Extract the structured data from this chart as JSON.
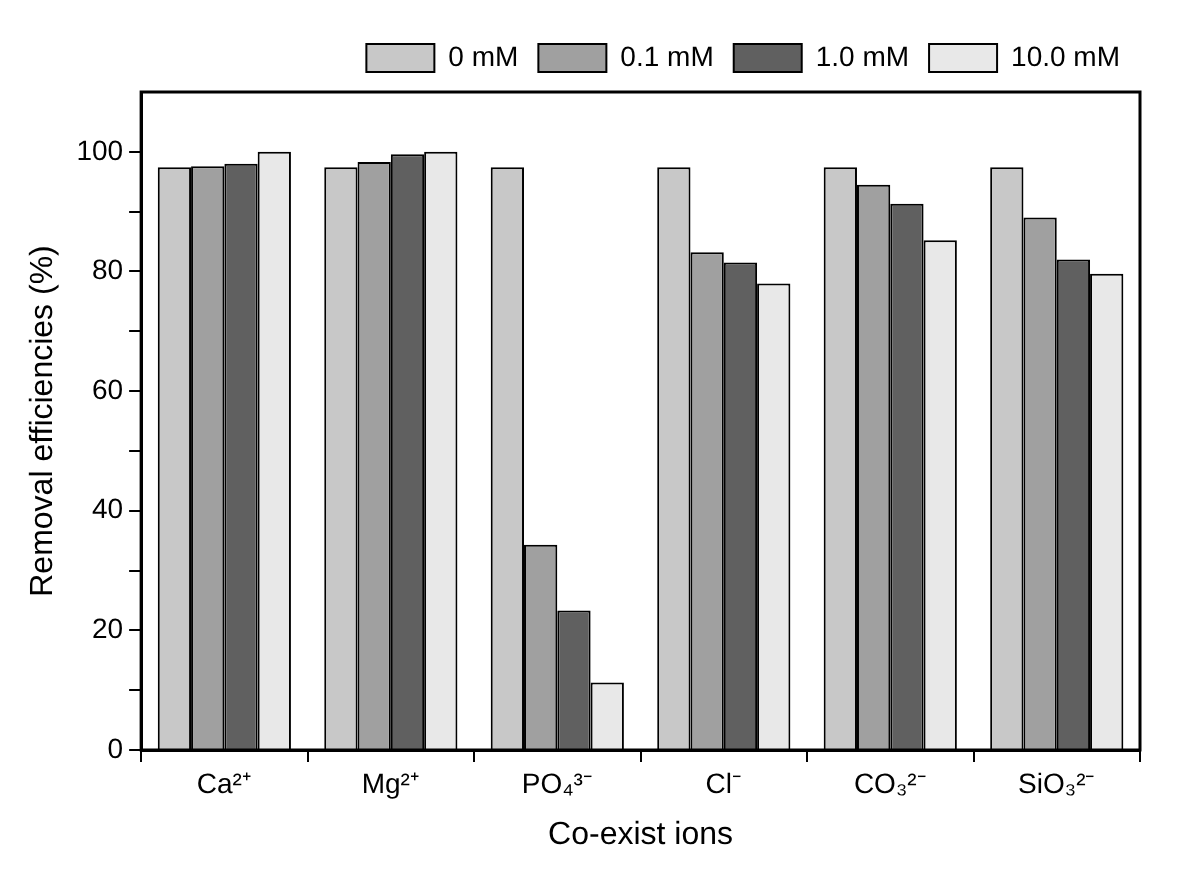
{
  "chart_data": {
    "type": "bar",
    "xlabel": "Co-exist ions",
    "ylabel": "Removal efficiencies (%)",
    "categories": [
      "Ca²⁺",
      "Mg²⁺",
      "PO₄³⁻",
      "Cl⁻",
      "CO₃²⁻",
      "SiO₃²⁻"
    ],
    "series": [
      {
        "name": "0 mM",
        "color": "#c8c8c8",
        "values": [
          97.4,
          97.4,
          97.4,
          97.4,
          97.4,
          97.4
        ]
      },
      {
        "name": "0.1 mM",
        "color": "#a0a0a0",
        "values": [
          97.6,
          98.3,
          34.3,
          83.2,
          94.5,
          89
        ]
      },
      {
        "name": "1.0 mM",
        "color": "#606060",
        "values": [
          98,
          99.6,
          23.3,
          81.5,
          91.3,
          82
        ]
      },
      {
        "name": "10.0 mM",
        "color": "#e8e8e8",
        "values": [
          100,
          100,
          11.3,
          78,
          85.2,
          79.6
        ]
      }
    ],
    "ylim": [
      0,
      110
    ],
    "yticks": [
      0,
      {
        "value": 10,
        "label": null
      },
      20,
      {
        "value": 30,
        "label": null
      },
      40,
      {
        "value": 50,
        "label": null
      },
      60,
      {
        "value": 70,
        "label": null
      },
      80,
      {
        "value": 90,
        "label": null
      },
      100
    ],
    "grid": false,
    "legend": "top right"
  }
}
